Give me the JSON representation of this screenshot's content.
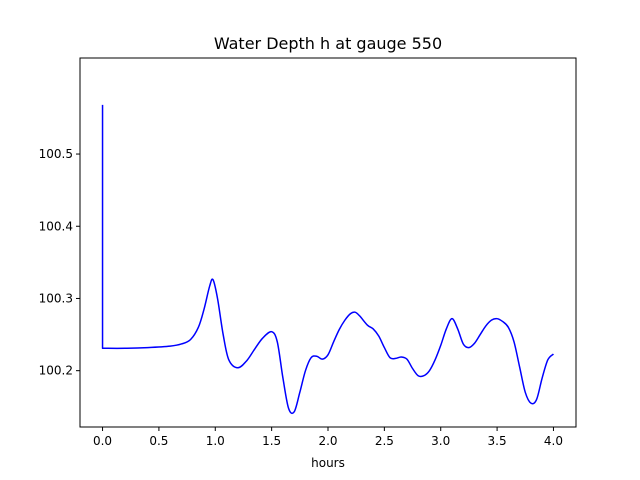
{
  "chart_data": {
    "type": "line",
    "title": "Water Depth h at gauge 550",
    "xlabel": "hours",
    "ylabel": "",
    "xlim": [
      -0.2,
      4.2
    ],
    "ylim": [
      100.122,
      100.633
    ],
    "x_ticks": [
      0.0,
      0.5,
      1.0,
      1.5,
      2.0,
      2.5,
      3.0,
      3.5,
      4.0
    ],
    "x_tick_labels": [
      "0.0",
      "0.5",
      "1.0",
      "1.5",
      "2.0",
      "2.5",
      "3.0",
      "3.5",
      "4.0"
    ],
    "y_ticks": [
      100.2,
      100.3,
      100.4,
      100.5
    ],
    "y_tick_labels": [
      "100.2",
      "100.3",
      "100.4",
      "100.5"
    ],
    "grid": false,
    "series": [
      {
        "color": "#0000ff",
        "x": [
          0.0,
          0.0,
          0.01,
          0.2,
          0.4,
          0.6,
          0.7,
          0.78,
          0.85,
          0.9,
          0.95,
          0.98,
          1.02,
          1.07,
          1.12,
          1.2,
          1.28,
          1.35,
          1.42,
          1.5,
          1.55,
          1.6,
          1.65,
          1.7,
          1.75,
          1.8,
          1.85,
          1.9,
          1.95,
          2.0,
          2.05,
          2.1,
          2.15,
          2.2,
          2.24,
          2.28,
          2.35,
          2.4,
          2.45,
          2.5,
          2.55,
          2.6,
          2.65,
          2.7,
          2.75,
          2.8,
          2.85,
          2.9,
          2.95,
          3.0,
          3.05,
          3.1,
          3.15,
          3.2,
          3.25,
          3.3,
          3.35,
          3.4,
          3.45,
          3.5,
          3.55,
          3.6,
          3.65,
          3.7,
          3.75,
          3.8,
          3.85,
          3.9,
          3.95,
          4.0
        ],
        "y": [
          100.568,
          100.231,
          100.231,
          100.231,
          100.232,
          100.234,
          100.237,
          100.243,
          100.26,
          100.285,
          100.317,
          100.326,
          100.3,
          100.25,
          100.215,
          100.204,
          100.214,
          100.23,
          100.245,
          100.254,
          100.24,
          100.19,
          100.148,
          100.143,
          100.17,
          100.2,
          100.218,
          100.22,
          100.216,
          100.222,
          100.24,
          100.257,
          100.27,
          100.279,
          100.281,
          100.276,
          100.263,
          100.258,
          100.248,
          100.232,
          100.218,
          100.217,
          100.219,
          100.216,
          100.203,
          100.193,
          100.193,
          100.2,
          100.215,
          100.235,
          100.258,
          100.272,
          100.258,
          100.237,
          100.232,
          100.238,
          100.25,
          100.262,
          100.27,
          100.272,
          100.268,
          100.26,
          100.24,
          100.205,
          100.17,
          100.155,
          100.16,
          100.19,
          100.215,
          100.223
        ]
      }
    ]
  }
}
